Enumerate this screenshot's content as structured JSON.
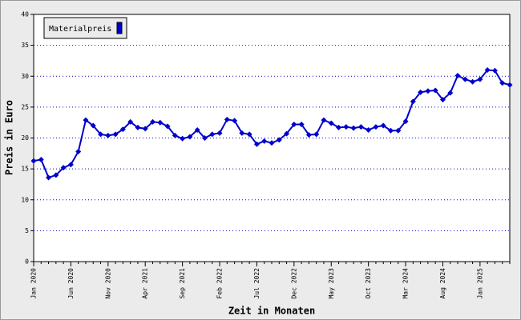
{
  "chart_data": {
    "type": "line",
    "x_label": "Zeit in Monaten",
    "y_label": "Preis in Euro",
    "categories": [
      "Jan 2020",
      null,
      null,
      null,
      null,
      "Jun 2020",
      null,
      null,
      null,
      null,
      "Nov 2020",
      null,
      null,
      null,
      null,
      "Apr 2021",
      null,
      null,
      null,
      null,
      "Sep 2021",
      null,
      null,
      null,
      null,
      "Feb 2022",
      null,
      null,
      null,
      null,
      "Jul 2022",
      null,
      null,
      null,
      null,
      "Dec 2022",
      null,
      null,
      null,
      null,
      "May 2023",
      null,
      null,
      null,
      null,
      "Oct 2023",
      null,
      null,
      null,
      null,
      "Mar 2024",
      null,
      null,
      null,
      null,
      "Aug 2024",
      null,
      null,
      null,
      null,
      "Jan 2025",
      null,
      null,
      null,
      null
    ],
    "series": [
      {
        "name": "Materialpreis",
        "color": "#0000cc",
        "values": [
          16.3,
          16.5,
          13.6,
          14.0,
          15.2,
          15.7,
          17.8,
          22.9,
          22.0,
          20.6,
          20.4,
          20.6,
          21.4,
          22.6,
          21.7,
          21.5,
          22.6,
          22.5,
          21.9,
          20.4,
          19.9,
          20.2,
          21.3,
          20.0,
          20.6,
          20.8,
          23.0,
          22.8,
          20.8,
          20.6,
          19.0,
          19.5,
          19.2,
          19.7,
          20.7,
          22.2,
          22.2,
          20.5,
          20.6,
          22.9,
          22.4,
          21.7,
          21.8,
          21.6,
          21.8,
          21.3,
          21.8,
          22.0,
          21.2,
          21.2,
          22.7,
          25.9,
          27.4,
          27.6,
          27.7,
          26.2,
          27.3,
          30.1,
          29.5,
          29.1,
          29.5,
          31.0,
          30.9,
          28.9,
          28.6
        ]
      }
    ],
    "ylim": [
      0,
      40
    ],
    "yticks": [
      0,
      5,
      10,
      15,
      20,
      25,
      30,
      35,
      40
    ],
    "grid": true,
    "legend": "top-left"
  }
}
